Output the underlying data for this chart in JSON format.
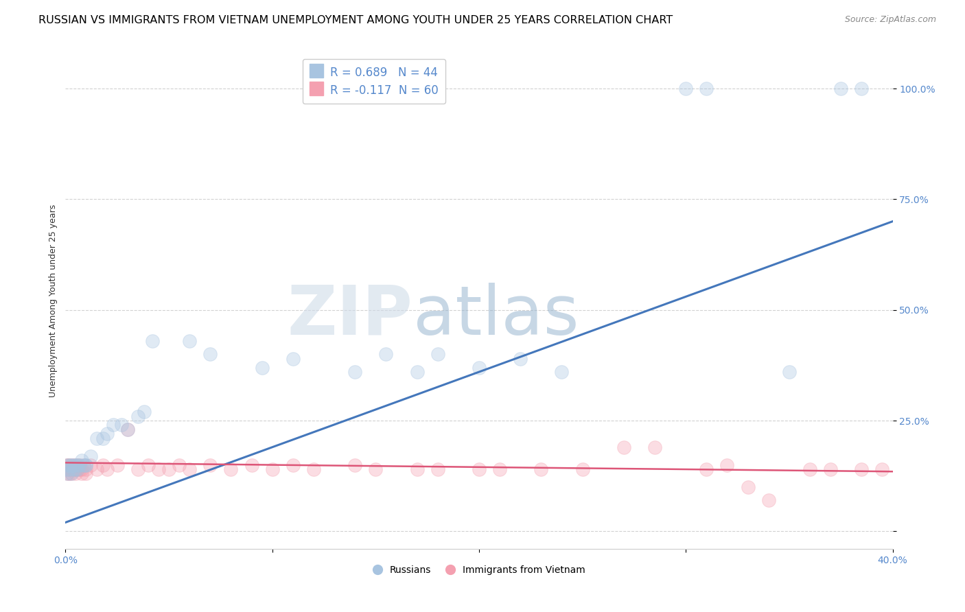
{
  "title": "RUSSIAN VS IMMIGRANTS FROM VIETNAM UNEMPLOYMENT AMONG YOUTH UNDER 25 YEARS CORRELATION CHART",
  "source": "Source: ZipAtlas.com",
  "ylabel": "Unemployment Among Youth under 25 years",
  "background_color": "#ffffff",
  "watermark_text": "ZIP",
  "watermark_text2": "atlas",
  "xlim": [
    0.0,
    0.4
  ],
  "ylim": [
    -0.04,
    1.08
  ],
  "blue_color": "#a8c4e0",
  "pink_color": "#f4a0b0",
  "blue_line_color": "#4477bb",
  "pink_line_color": "#dd5577",
  "blue_R": 0.689,
  "blue_N": 44,
  "pink_R": -0.117,
  "pink_N": 60,
  "tick_color": "#5588cc",
  "axis_color": "#cccccc",
  "grid_color": "#cccccc",
  "title_fontsize": 11.5,
  "source_fontsize": 9,
  "axis_label_fontsize": 9,
  "tick_fontsize": 10,
  "legend_fontsize": 12,
  "scatter_blue": [
    [
      0.001,
      0.15
    ],
    [
      0.001,
      0.14
    ],
    [
      0.001,
      0.13
    ],
    [
      0.002,
      0.15
    ],
    [
      0.002,
      0.14
    ],
    [
      0.003,
      0.15
    ],
    [
      0.003,
      0.13
    ],
    [
      0.004,
      0.14
    ],
    [
      0.004,
      0.15
    ],
    [
      0.005,
      0.14
    ],
    [
      0.005,
      0.15
    ],
    [
      0.006,
      0.15
    ],
    [
      0.006,
      0.14
    ],
    [
      0.007,
      0.15
    ],
    [
      0.008,
      0.16
    ],
    [
      0.009,
      0.15
    ],
    [
      0.01,
      0.15
    ],
    [
      0.012,
      0.17
    ],
    [
      0.015,
      0.21
    ],
    [
      0.018,
      0.21
    ],
    [
      0.02,
      0.22
    ],
    [
      0.023,
      0.24
    ],
    [
      0.027,
      0.24
    ],
    [
      0.03,
      0.23
    ],
    [
      0.035,
      0.26
    ],
    [
      0.038,
      0.27
    ],
    [
      0.042,
      0.43
    ],
    [
      0.06,
      0.43
    ],
    [
      0.07,
      0.4
    ],
    [
      0.095,
      0.37
    ],
    [
      0.11,
      0.39
    ],
    [
      0.14,
      0.36
    ],
    [
      0.155,
      0.4
    ],
    [
      0.17,
      0.36
    ],
    [
      0.18,
      0.4
    ],
    [
      0.2,
      0.37
    ],
    [
      0.22,
      0.39
    ],
    [
      0.24,
      0.36
    ],
    [
      0.3,
      1.0
    ],
    [
      0.31,
      1.0
    ],
    [
      0.35,
      0.36
    ],
    [
      0.375,
      1.0
    ],
    [
      0.385,
      1.0
    ],
    [
      0.01,
      0.15
    ]
  ],
  "scatter_pink": [
    [
      0.001,
      0.15
    ],
    [
      0.001,
      0.14
    ],
    [
      0.001,
      0.13
    ],
    [
      0.001,
      0.15
    ],
    [
      0.002,
      0.15
    ],
    [
      0.002,
      0.14
    ],
    [
      0.002,
      0.13
    ],
    [
      0.003,
      0.14
    ],
    [
      0.003,
      0.15
    ],
    [
      0.003,
      0.13
    ],
    [
      0.004,
      0.15
    ],
    [
      0.004,
      0.14
    ],
    [
      0.005,
      0.14
    ],
    [
      0.005,
      0.15
    ],
    [
      0.005,
      0.13
    ],
    [
      0.006,
      0.14
    ],
    [
      0.006,
      0.15
    ],
    [
      0.007,
      0.14
    ],
    [
      0.007,
      0.15
    ],
    [
      0.008,
      0.14
    ],
    [
      0.008,
      0.13
    ],
    [
      0.009,
      0.15
    ],
    [
      0.01,
      0.14
    ],
    [
      0.01,
      0.13
    ],
    [
      0.012,
      0.15
    ],
    [
      0.015,
      0.14
    ],
    [
      0.018,
      0.15
    ],
    [
      0.02,
      0.14
    ],
    [
      0.025,
      0.15
    ],
    [
      0.03,
      0.23
    ],
    [
      0.035,
      0.14
    ],
    [
      0.04,
      0.15
    ],
    [
      0.045,
      0.14
    ],
    [
      0.05,
      0.14
    ],
    [
      0.055,
      0.15
    ],
    [
      0.06,
      0.14
    ],
    [
      0.07,
      0.15
    ],
    [
      0.08,
      0.14
    ],
    [
      0.09,
      0.15
    ],
    [
      0.1,
      0.14
    ],
    [
      0.11,
      0.15
    ],
    [
      0.12,
      0.14
    ],
    [
      0.14,
      0.15
    ],
    [
      0.15,
      0.14
    ],
    [
      0.17,
      0.14
    ],
    [
      0.18,
      0.14
    ],
    [
      0.2,
      0.14
    ],
    [
      0.21,
      0.14
    ],
    [
      0.23,
      0.14
    ],
    [
      0.25,
      0.14
    ],
    [
      0.27,
      0.19
    ],
    [
      0.285,
      0.19
    ],
    [
      0.31,
      0.14
    ],
    [
      0.32,
      0.15
    ],
    [
      0.33,
      0.1
    ],
    [
      0.34,
      0.07
    ],
    [
      0.36,
      0.14
    ],
    [
      0.37,
      0.14
    ],
    [
      0.385,
      0.14
    ],
    [
      0.395,
      0.14
    ]
  ],
  "blue_line": [
    [
      0.0,
      0.02
    ],
    [
      0.4,
      0.7
    ]
  ],
  "pink_line": [
    [
      0.0,
      0.155
    ],
    [
      0.4,
      0.135
    ]
  ]
}
